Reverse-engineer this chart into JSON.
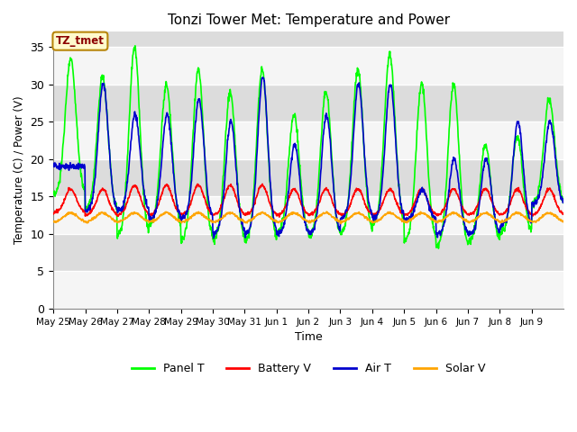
{
  "title": "Tonzi Tower Met: Temperature and Power",
  "xlabel": "Time",
  "ylabel": "Temperature (C) / Power (V)",
  "ylim": [
    0,
    37
  ],
  "yticks": [
    0,
    5,
    10,
    15,
    20,
    25,
    30,
    35
  ],
  "annotation_text": "TZ_tmet",
  "colors": {
    "panel_t": "#00FF00",
    "battery_v": "#FF0000",
    "air_t": "#0000CD",
    "solar_v": "#FFA500"
  },
  "background_color": "#DCDCDC",
  "grid_color": "#F5F5F5",
  "legend_labels": [
    "Panel T",
    "Battery V",
    "Air T",
    "Solar V"
  ],
  "tick_labels": [
    "May 25",
    "May 26",
    "May 27",
    "May 28",
    "May 29",
    "May 30",
    "May 31",
    "Jun 1",
    "Jun 2",
    "Jun 3",
    "Jun 4",
    "Jun 5",
    "Jun 6",
    "Jun 7",
    "Jun 8",
    "Jun 9"
  ],
  "n_days": 16,
  "pts_per_day": 96,
  "panel_peaks": [
    33.5,
    31,
    35,
    30,
    32,
    29,
    32,
    26,
    29,
    32,
    34,
    30,
    30,
    22,
    23,
    28
  ],
  "panel_troughs": [
    15,
    13,
    9.5,
    11,
    9,
    9,
    9,
    10,
    9.5,
    10,
    11,
    9,
    8,
    9,
    10,
    14
  ],
  "air_peaks": [
    19,
    30,
    26,
    26,
    28,
    25,
    31,
    22,
    26,
    30,
    30,
    16,
    20,
    20,
    25,
    25
  ],
  "air_troughs": [
    19,
    13,
    13,
    12,
    12,
    10,
    10,
    10,
    10,
    12,
    12,
    12,
    10,
    10,
    11,
    14
  ],
  "batt_peaks": [
    16,
    16,
    16.5,
    16.5,
    16.5,
    16.5,
    16.5,
    16,
    16,
    16,
    16,
    16,
    16,
    16,
    16,
    16
  ],
  "batt_troughs": [
    12.8,
    12.5,
    12.5,
    12.5,
    12.5,
    12.5,
    12.5,
    12.5,
    12.5,
    12.5,
    12.5,
    12.5,
    12.5,
    12.5,
    12.5,
    12.5
  ],
  "solar_base": 11.5,
  "solar_bump": 1.3
}
